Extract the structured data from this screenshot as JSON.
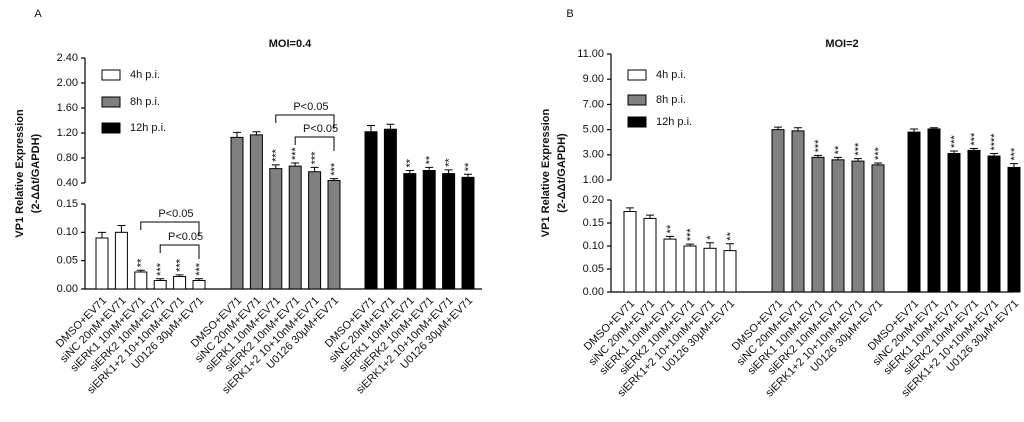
{
  "chart_data": [
    {
      "type": "bar",
      "panel": "A",
      "title": "MOI=0.4",
      "ylabel": "VP1 Relative Expression",
      "ylabel2": "(2-ΔΔt/GAPDH)",
      "categories": [
        "DMSO+EV71",
        "siNC 20nM+EV71",
        "siERK1 10nM+EV71",
        "siERK2 10nM+EV71",
        "siERK1+2 10+10nM+EV71",
        "U0126 30μM+EV71"
      ],
      "series": [
        {
          "name": "4h p.i.",
          "color": "#ffffff",
          "values": [
            0.09,
            0.1,
            0.03,
            0.015,
            0.022,
            0.015
          ],
          "errors": [
            0.01,
            0.012,
            0.003,
            0.003,
            0.003,
            0.003
          ],
          "stars": [
            null,
            null,
            "**",
            "***",
            "***",
            "***"
          ]
        },
        {
          "name": "8h p.i.",
          "color": "#808080",
          "values": [
            1.13,
            1.17,
            0.63,
            0.67,
            0.58,
            0.44
          ],
          "errors": [
            0.08,
            0.05,
            0.06,
            0.05,
            0.07,
            0.03
          ],
          "stars": [
            null,
            null,
            "***",
            "***",
            "***",
            "***"
          ]
        },
        {
          "name": "12h p.i.",
          "color": "#000000",
          "values": [
            1.22,
            1.26,
            0.55,
            0.6,
            0.55,
            0.49
          ],
          "errors": [
            0.1,
            0.08,
            0.05,
            0.05,
            0.06,
            0.05
          ],
          "stars": [
            null,
            null,
            "**",
            "**",
            "**",
            "**"
          ]
        }
      ],
      "axis_segments": [
        {
          "ylim": [
            0,
            0.15
          ],
          "yticks": [
            {
              "value": 0,
              "label": "0.00"
            },
            {
              "value": 0.05,
              "label": "0.05"
            },
            {
              "value": 0.1,
              "label": "0.10"
            },
            {
              "value": 0.15,
              "label": "0.15"
            }
          ]
        },
        {
          "ylim": [
            0.4,
            2.4
          ],
          "yticks": [
            {
              "value": 0.4,
              "label": "0.40"
            },
            {
              "value": 0.8,
              "label": "0.80"
            },
            {
              "value": 1.2,
              "label": "1.20"
            },
            {
              "value": 1.6,
              "label": "1.60"
            },
            {
              "value": 2,
              "label": "2.00"
            },
            {
              "value": 2.4,
              "label": "2.40"
            }
          ]
        }
      ],
      "annotations": [
        "P<0.05",
        "P<0.05",
        "P<0.05",
        "P<0.05"
      ]
    },
    {
      "type": "bar",
      "panel": "B",
      "title": "MOI=2",
      "ylabel": "VP1 Relative Expression",
      "ylabel2": "(2-ΔΔt/GAPDH)",
      "categories": [
        "DMSO+EV71",
        "siNC 20nM+EV71",
        "siERK1 10nM+EV71",
        "siERK2 10nM+EV71",
        "siERK1+2 10+10nM+EV71",
        "U0126 30μM+EV71"
      ],
      "series": [
        {
          "name": "4h p.i.",
          "color": "#ffffff",
          "values": [
            0.175,
            0.16,
            0.115,
            0.1,
            0.095,
            0.09
          ],
          "errors": [
            0.008,
            0.007,
            0.006,
            0.004,
            0.012,
            0.015
          ],
          "stars": [
            null,
            null,
            "**",
            "***",
            "*",
            "**"
          ]
        },
        {
          "name": "8h p.i.",
          "color": "#808080",
          "values": [
            5.0,
            4.9,
            2.8,
            2.6,
            2.5,
            2.2
          ],
          "errors": [
            0.2,
            0.25,
            0.15,
            0.2,
            0.2,
            0.15
          ],
          "stars": [
            null,
            null,
            "***",
            "**",
            "***",
            "***"
          ]
        },
        {
          "name": "12h p.i.",
          "color": "#000000",
          "values": [
            4.8,
            5.05,
            3.1,
            3.35,
            2.9,
            2.0
          ],
          "errors": [
            0.25,
            0.1,
            0.2,
            0.15,
            0.2,
            0.3
          ],
          "stars": [
            null,
            null,
            "***",
            "***",
            "****",
            "***"
          ]
        }
      ],
      "axis_segments": [
        {
          "ylim": [
            0,
            0.2
          ],
          "yticks": [
            {
              "value": 0,
              "label": "0.00"
            },
            {
              "value": 0.05,
              "label": "0.05"
            },
            {
              "value": 0.1,
              "label": "0.10"
            },
            {
              "value": 0.15,
              "label": "0.15"
            },
            {
              "value": 0.2,
              "label": "0.20"
            }
          ]
        },
        {
          "ylim": [
            1,
            11
          ],
          "yticks": [
            {
              "value": 1,
              "label": "1.00"
            },
            {
              "value": 3,
              "label": "3.00"
            },
            {
              "value": 5,
              "label": "5.00"
            },
            {
              "value": 7,
              "label": "7.00"
            },
            {
              "value": 9,
              "label": "9.00"
            },
            {
              "value": 11,
              "label": "11.00"
            }
          ]
        }
      ]
    }
  ]
}
